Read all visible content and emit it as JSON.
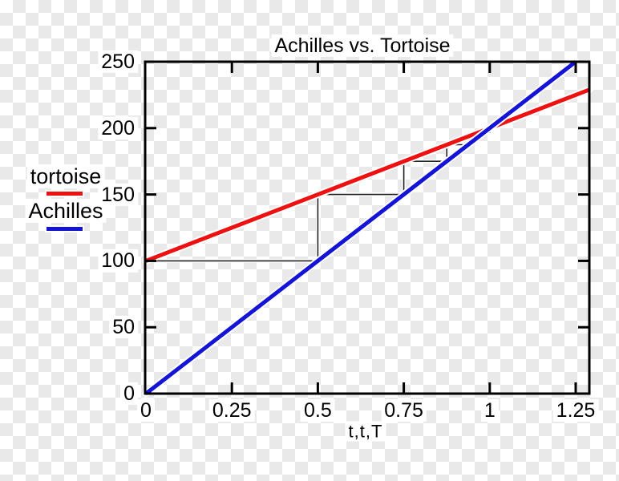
{
  "title": "Achilles vs. Tortoise",
  "xlabel": "t,t,T",
  "legend": {
    "items": [
      {
        "label": "tortoise",
        "color": "#ee1111"
      },
      {
        "label": "Achilles",
        "color": "#1414d6"
      }
    ]
  },
  "chart_data": {
    "type": "line",
    "title": "Achilles vs. Tortoise",
    "xlabel": "t,t,T",
    "ylabel": "",
    "xlim": [
      0,
      1.29
    ],
    "ylim": [
      0,
      250
    ],
    "x_ticks": [
      0,
      0.25,
      0.5,
      0.75,
      1,
      1.25
    ],
    "x_tick_labels": [
      "0",
      "0.25",
      "0.5",
      "0.75",
      "1",
      "1.25"
    ],
    "y_ticks": [
      0,
      50,
      100,
      150,
      200,
      250
    ],
    "y_tick_labels": [
      "0",
      "50",
      "100",
      "150",
      "200",
      "250"
    ],
    "grid": false,
    "legend_position": "left-outside",
    "frame_color": "#000000",
    "series": [
      {
        "name": "tortoise",
        "color": "#ee1111",
        "points": [
          [
            0,
            100
          ],
          [
            1.29,
            229
          ]
        ]
      },
      {
        "name": "Achilles",
        "color": "#1414d6",
        "points": [
          [
            0,
            0
          ],
          [
            1.25,
            250
          ]
        ]
      }
    ],
    "staircase": {
      "name": "zeno-convergence-steps",
      "color": "#222222",
      "points": [
        [
          0,
          100
        ],
        [
          0.5,
          100
        ],
        [
          0.5,
          150
        ],
        [
          0.75,
          150
        ],
        [
          0.75,
          175
        ],
        [
          0.875,
          175
        ],
        [
          0.875,
          187.5
        ],
        [
          0.9375,
          187.5
        ],
        [
          0.9375,
          193.75
        ],
        [
          0.96875,
          193.75
        ],
        [
          0.96875,
          196.875
        ],
        [
          1,
          196.875
        ],
        [
          1,
          200
        ]
      ]
    }
  }
}
